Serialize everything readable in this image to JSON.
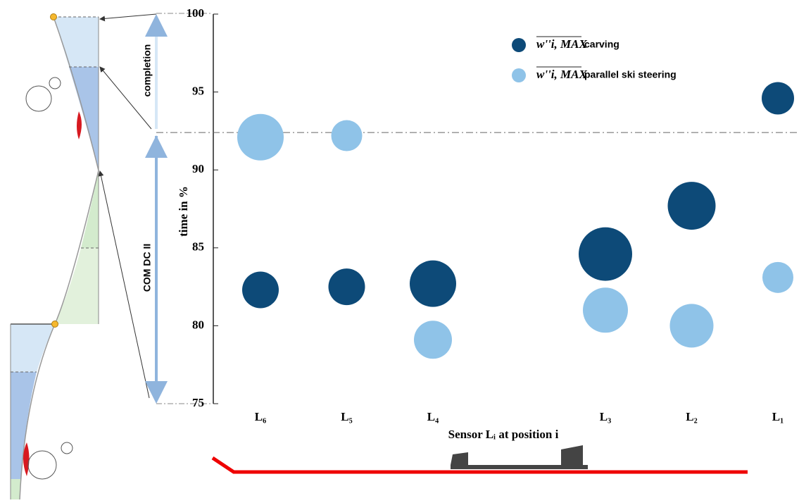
{
  "chart_data": {
    "type": "bubble",
    "categories": [
      "L₆",
      "L₅",
      "L₄",
      null,
      "L₃",
      "L₂",
      "L₁"
    ],
    "series": [
      {
        "name": "carving",
        "color": "#0d4a78",
        "values": [
          82.3,
          82.5,
          82.7,
          null,
          84.6,
          87.7,
          94.6
        ],
        "sizes": [
          26,
          26,
          33,
          null,
          38,
          34,
          23
        ]
      },
      {
        "name": "parallel ski steering",
        "color": "#8fc3e8",
        "values": [
          92.1,
          92.2,
          79.1,
          null,
          81.0,
          80.0,
          83.1
        ],
        "sizes": [
          33,
          22,
          27,
          null,
          32,
          31,
          22
        ]
      }
    ],
    "legend_symbol": "w''i, MAX",
    "ylim": [
      75,
      100
    ],
    "yticks": [
      75,
      80,
      85,
      90,
      95,
      100
    ],
    "ylabel": "time in %",
    "xlabel": "Sensor Lᵢ at position i",
    "hline": 92.4,
    "annotations": [
      "completion",
      "COM DC II"
    ]
  }
}
